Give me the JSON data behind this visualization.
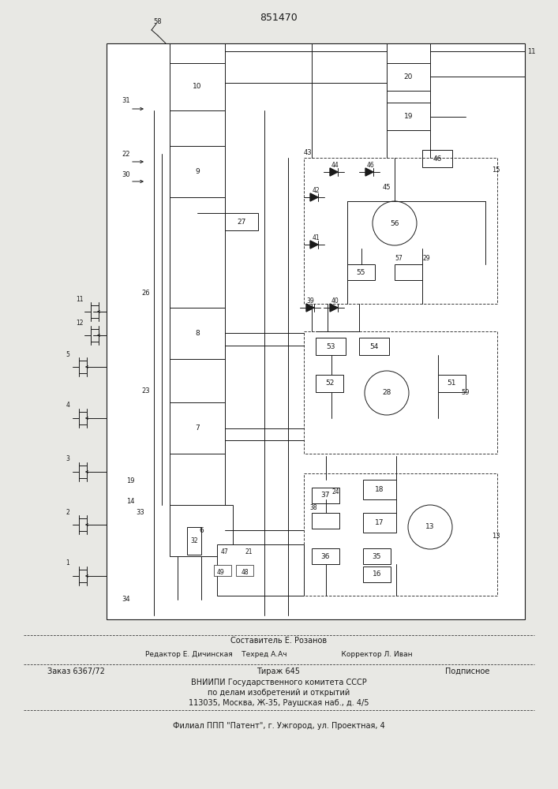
{
  "patent_number": "851470",
  "bg": "#e8e8e4",
  "lc": "#1a1a1a",
  "footer": [
    [
      "Составитель Е. Розанов",
      353,
      812,
      7,
      "center"
    ],
    [
      "Редактор Е. Дичинская    Техред А.Ач                        Корректор Л. Иван",
      353,
      830,
      6.5,
      "center"
    ],
    [
      "Заказ 6367/72",
      60,
      851,
      7,
      "left"
    ],
    [
      "Тираж 645",
      353,
      851,
      7,
      "center"
    ],
    [
      "Подписное",
      620,
      851,
      7,
      "right"
    ],
    [
      "ВНИИПИ Государственного комитета СССР",
      353,
      865,
      7,
      "center"
    ],
    [
      "по делам изобретений и открытий",
      353,
      878,
      7,
      "center"
    ],
    [
      "113035, Москва, Ж-35, Раушская наб., д. 4/5",
      353,
      891,
      7,
      "center"
    ],
    [
      "Филиал ППП \"Патент\", г. Ужгород, ул. Проектная, 4",
      353,
      920,
      7,
      "center"
    ]
  ]
}
